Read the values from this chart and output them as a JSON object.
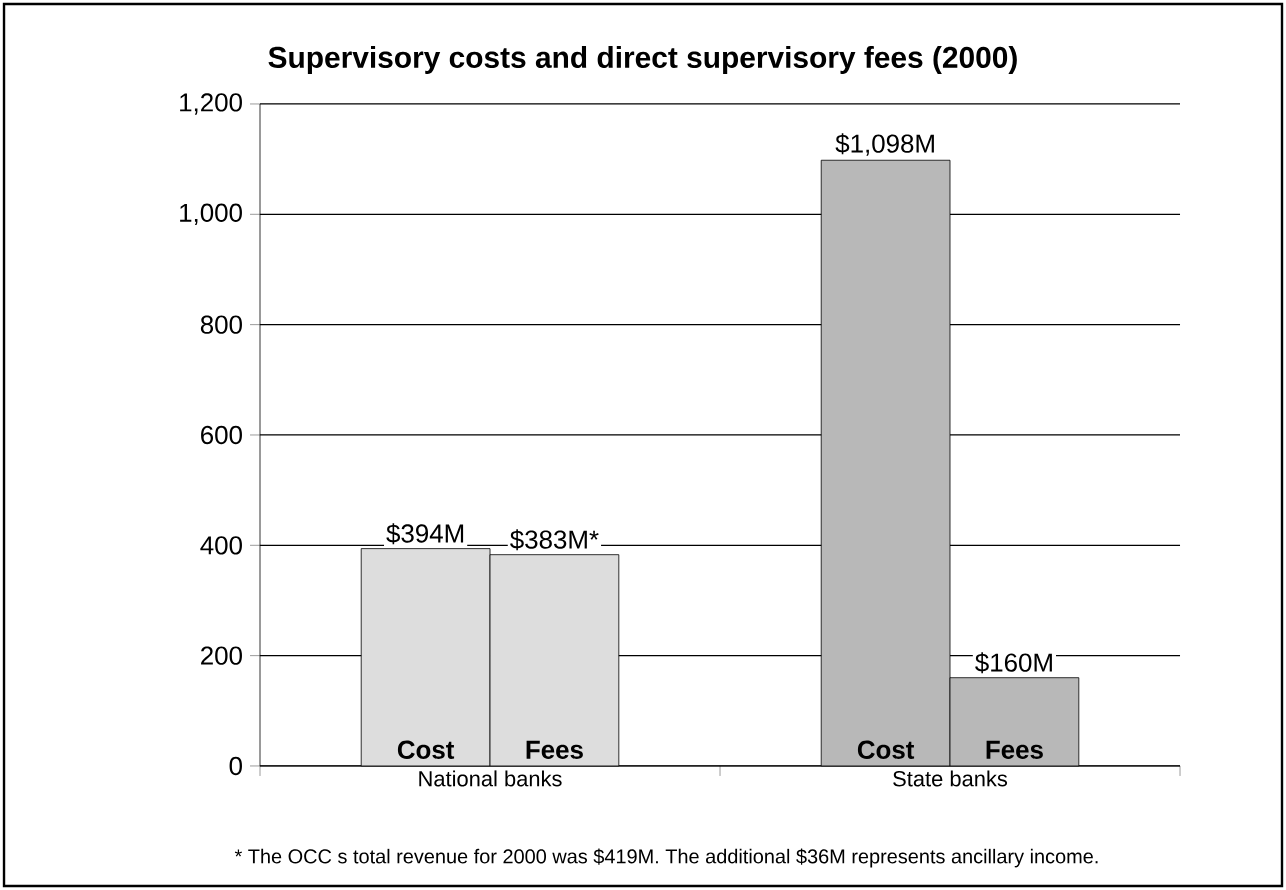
{
  "chart_data": {
    "type": "bar",
    "title": "Supervisory costs and direct supervisory fees (2000)",
    "categories": [
      "National banks",
      "State banks"
    ],
    "series": [
      {
        "name": "Cost",
        "values": [
          394,
          1098
        ],
        "colors": [
          "#dddddd",
          "#b8b8b8"
        ],
        "value_labels": [
          "$394M",
          "$1,098M"
        ]
      },
      {
        "name": "Fees",
        "values": [
          383,
          160
        ],
        "colors": [
          "#dddddd",
          "#b8b8b8"
        ],
        "value_labels": [
          "$383M*",
          "$160M"
        ]
      }
    ],
    "ylim": [
      0,
      1200
    ],
    "yticks": [
      0,
      200,
      400,
      600,
      800,
      {
        "value": 1000,
        "label": "1,000"
      },
      {
        "value": 1200,
        "label": "1,200"
      }
    ],
    "grid": "y",
    "annotations": [
      "* The OCC s total revenue for 2000 was $419M.  The additional $36M represents ancillary income."
    ]
  }
}
